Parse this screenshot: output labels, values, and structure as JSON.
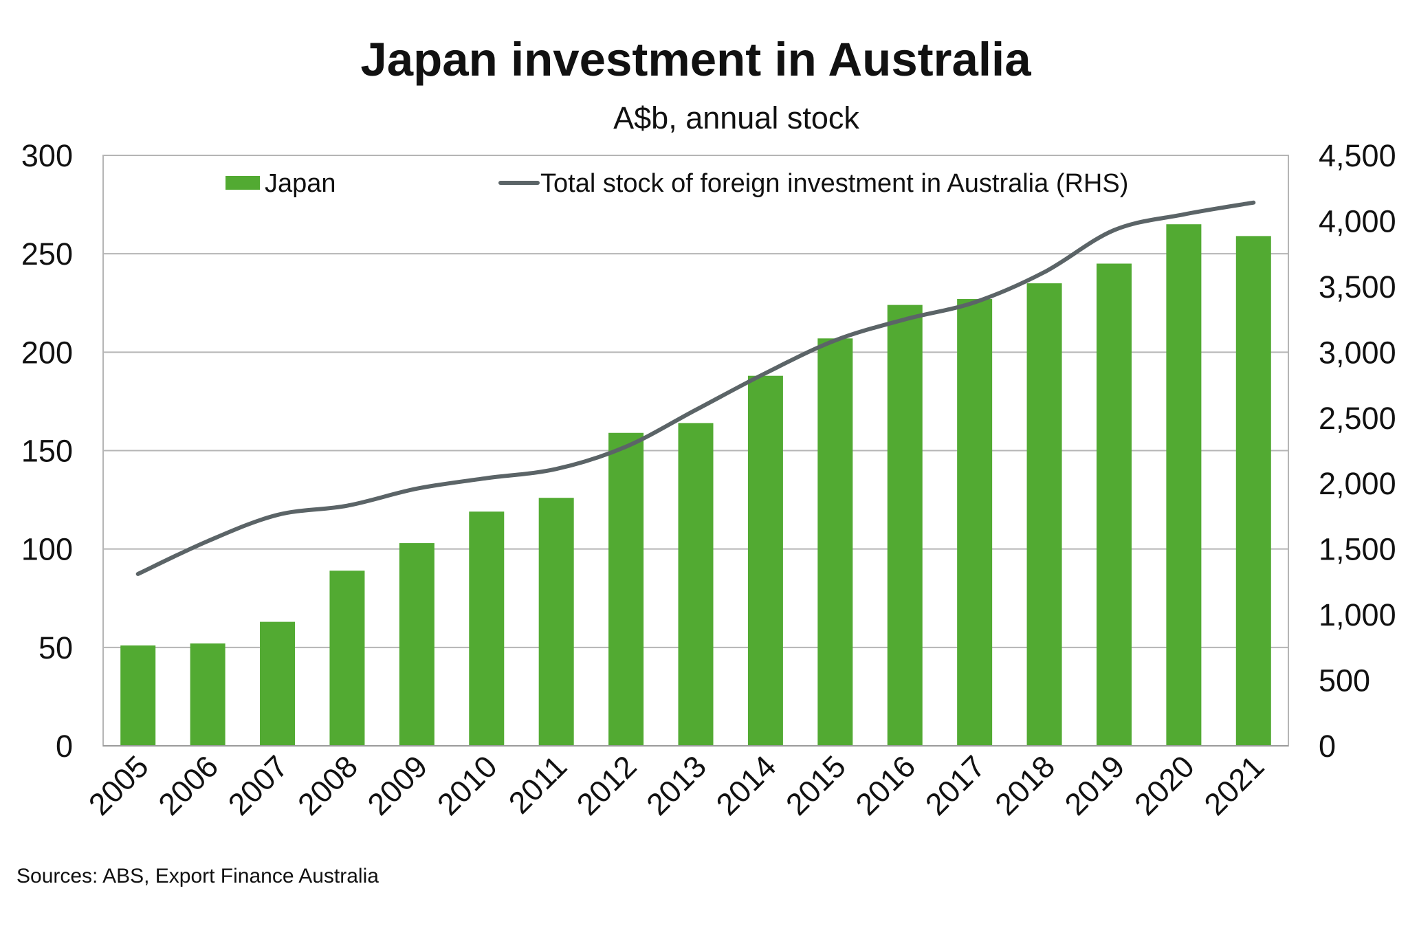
{
  "chart_data": {
    "type": "bar",
    "title": "Japan investment in Australia",
    "subtitle": "A$b, annual stock",
    "categories": [
      "2005",
      "2006",
      "2007",
      "2008",
      "2009",
      "2010",
      "2011",
      "2012",
      "2013",
      "2014",
      "2015",
      "2016",
      "2017",
      "2018",
      "2019",
      "2020",
      "2021"
    ],
    "series": [
      {
        "name": "Japan",
        "type": "bar",
        "axis": "left",
        "color": "#52aa32",
        "values": [
          51,
          52,
          63,
          89,
          103,
          119,
          126,
          159,
          164,
          188,
          207,
          224,
          227,
          235,
          245,
          265,
          259
        ]
      },
      {
        "name": "Total stock of foreign investment in Australia (RHS)",
        "type": "line",
        "axis": "right",
        "color": "#5b6467",
        "values": [
          1310,
          1560,
          1760,
          1830,
          1960,
          2040,
          2110,
          2280,
          2560,
          2840,
          3090,
          3250,
          3380,
          3610,
          3930,
          4050,
          4140
        ]
      }
    ],
    "ylim": [
      0,
      300
    ],
    "yticks": [
      "0",
      "50",
      "100",
      "150",
      "200",
      "250",
      "300"
    ],
    "y2lim": [
      0,
      4500
    ],
    "y2ticks": [
      "0",
      "500",
      "1,000",
      "1,500",
      "2,000",
      "2,500",
      "3,000",
      "3,500",
      "4,000",
      "4,500"
    ],
    "grid": true,
    "legend_position": "top-inside",
    "source_note": "Sources: ABS, Export Finance Australia"
  }
}
